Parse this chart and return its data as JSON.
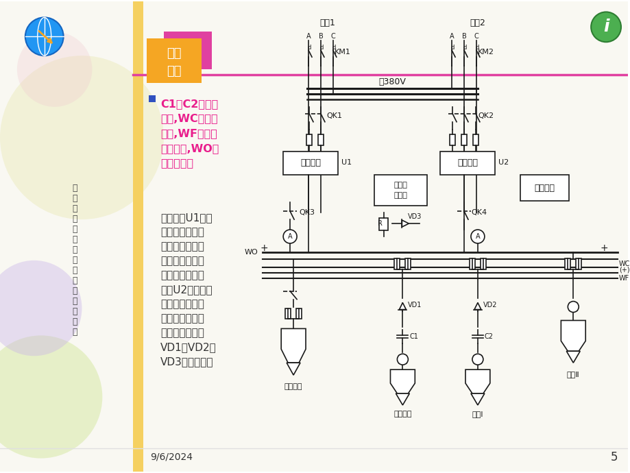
{
  "bg_color": "#ffffff",
  "slide_bg": "#f5f5f0",
  "title_box_color": "#f5a623",
  "title_box_color2": "#e040a0",
  "title_text": "工厂\n供电",
  "sidebar_text": "河\n北\n机\n电\n职\n业\n技\n术\n学\n院\n电\n气\n工\n程\n系",
  "bullet_text_line1": "C1、C2储能电容器,WC控制小母线,WF闪光信号小母线,WO合闸小母线。",
  "bullet_text_line2": "硅整流器U1主要用作断路器合闸电源，并可向控制、信号和保护回路供电。硅整流器U2的容量较小，仅向控制、信号和保护回路供电（由二极管VD1、VD2、VD3起作用）。",
  "date_text": "9/6/2024",
  "page_num": "5",
  "accent_color_orange": "#f5a623",
  "accent_color_pink": "#e91e8c",
  "accent_color_magenta": "#d4006a",
  "diagram_line_color": "#1a1a1a",
  "box_color": "#ffffff",
  "text_color_bullet1": "#e91e8c",
  "text_color_bullet2": "#333333"
}
